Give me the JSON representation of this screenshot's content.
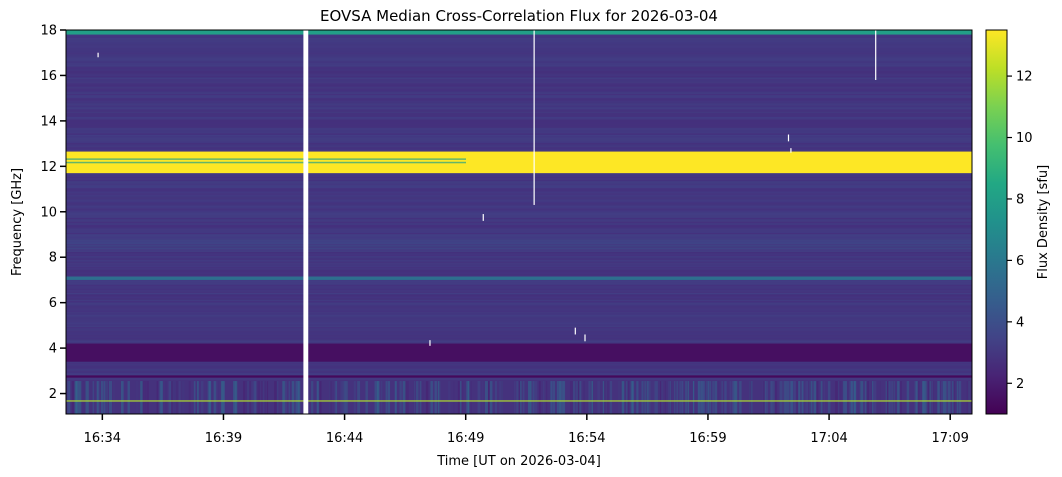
{
  "chart_data": {
    "type": "heatmap",
    "title": "EOVSA Median Cross-Correlation Flux for 2026-03-04",
    "xlabel": "Time [UT on 2026-03-04]",
    "ylabel": "Frequency [GHz]",
    "colorbar_label": "Flux Density [sfu]",
    "colormap": "viridis",
    "time_range_min": [
      0.0,
      37.4
    ],
    "time_start_label": "16:32",
    "x_tick_labels": [
      "16:34",
      "16:39",
      "16:44",
      "16:49",
      "16:54",
      "16:59",
      "17:04",
      "17:09"
    ],
    "x_tick_offsets_min": [
      1.5,
      6.5,
      11.5,
      16.5,
      21.5,
      26.5,
      31.5,
      36.5
    ],
    "ylim": [
      1.1,
      18.0
    ],
    "y_ticks": [
      2,
      4,
      6,
      8,
      10,
      12,
      14,
      16,
      18
    ],
    "y_tick_labels": [
      "2",
      "4",
      "6",
      "8",
      "10",
      "12",
      "14",
      "16",
      "18"
    ],
    "colorbar_range": [
      1.0,
      13.5
    ],
    "colorbar_ticks": [
      2,
      4,
      6,
      8,
      10,
      12
    ],
    "colorbar_tick_labels": [
      "2",
      "4",
      "6",
      "8",
      "10",
      "12"
    ],
    "background_level_sfu": 3.0,
    "features": [
      {
        "name": "RFI band (saturated)",
        "freq_range_ghz": [
          11.7,
          12.65
        ],
        "level_sfu": 13.5
      },
      {
        "name": "data gap",
        "time_range_min": [
          9.8,
          10.0
        ],
        "level": "blank"
      },
      {
        "name": "low-freq noisy band",
        "freq_range_ghz": [
          1.1,
          2.6
        ],
        "level_sfu": 2.8
      },
      {
        "name": "dark band",
        "freq_range_ghz": [
          3.4,
          4.2
        ],
        "level_sfu": 1.5
      },
      {
        "name": "dark band",
        "freq_range_ghz": [
          2.7,
          2.8
        ],
        "level_sfu": 1.3
      },
      {
        "name": "bright stripe",
        "freq_range_ghz": [
          7.0,
          7.15
        ],
        "level_sfu": 5.5
      },
      {
        "name": "bright stripe",
        "freq_range_ghz": [
          17.8,
          17.98
        ],
        "level_sfu": 8.0
      }
    ]
  },
  "colors": {
    "viridis": [
      "#440154",
      "#482475",
      "#414487",
      "#355f8d",
      "#2a788e",
      "#21918c",
      "#22a884",
      "#44bf70",
      "#7ad151",
      "#bddf26",
      "#fde725"
    ],
    "gap": "#ffffff"
  }
}
